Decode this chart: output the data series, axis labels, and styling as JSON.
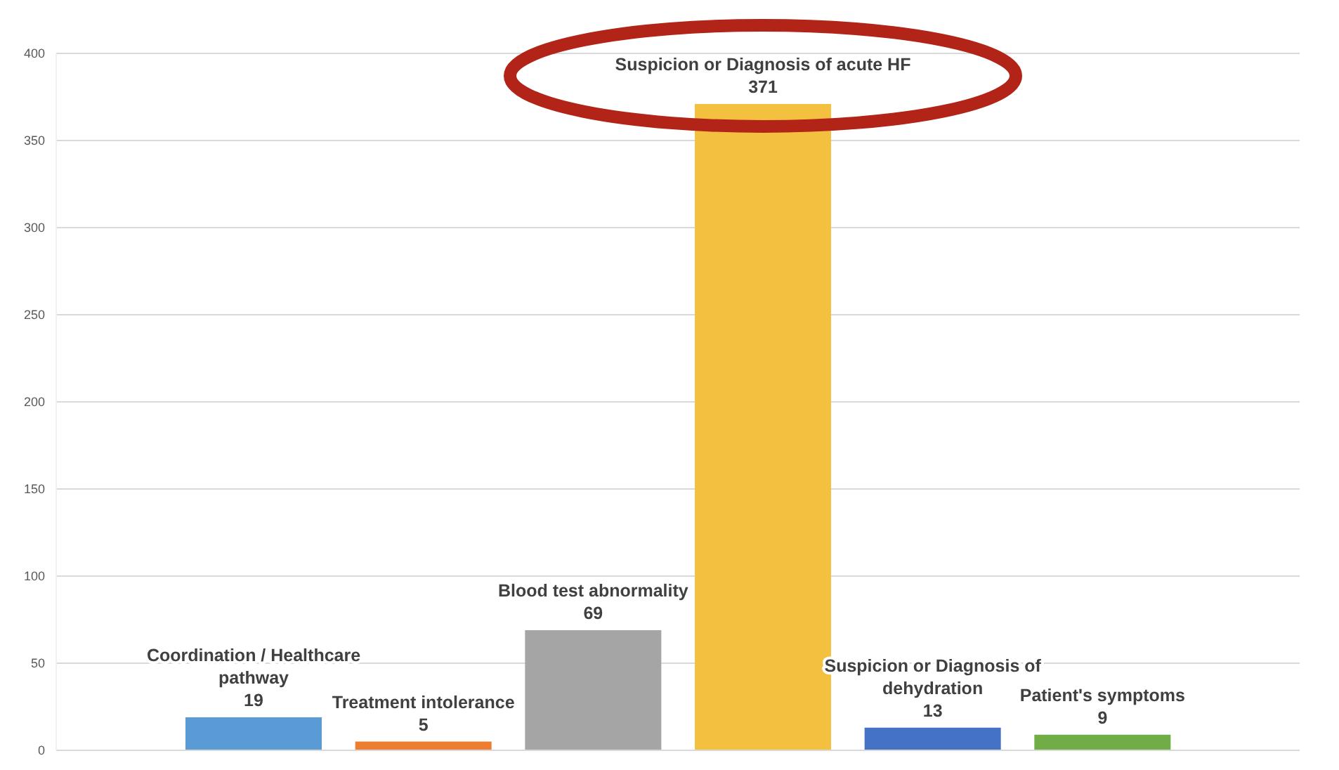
{
  "chart_data": {
    "type": "bar",
    "categories": [
      "Coordination / Healthcare pathway",
      "Treatment intolerance",
      "Blood test abnormality",
      "Suspicion or Diagnosis of acute HF",
      "Suspicion or Diagnosis of dehydration",
      "Patient's symptoms"
    ],
    "values": [
      19,
      5,
      69,
      371,
      13,
      9
    ],
    "colors": [
      "#5b9bd5",
      "#ed7d31",
      "#a5a5a5",
      "#f4c040",
      "#4472c4",
      "#70ad47"
    ],
    "ylim": [
      0,
      400
    ],
    "yticks": [
      0,
      50,
      100,
      150,
      200,
      250,
      300,
      350,
      400
    ],
    "grid": "y",
    "data_labels": true,
    "tick_labels": "y"
  }
}
